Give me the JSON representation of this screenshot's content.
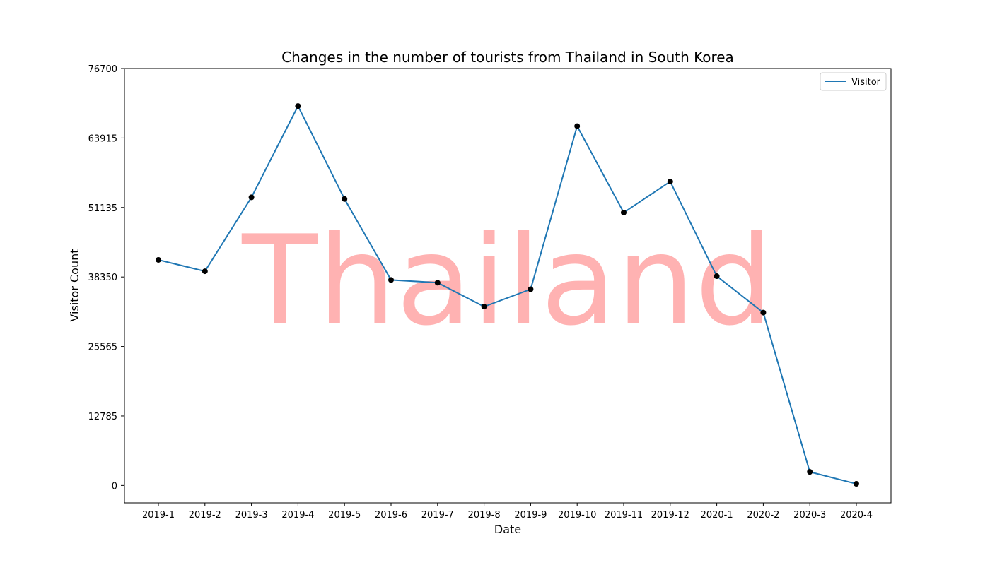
{
  "chart_data": {
    "type": "line",
    "title": "Changes in the number of tourists from Thailand in South Korea",
    "xlabel": "Date",
    "ylabel": "Visitor Count",
    "categories": [
      "2019-1",
      "2019-2",
      "2019-3",
      "2019-4",
      "2019-5",
      "2019-6",
      "2019-7",
      "2019-8",
      "2019-9",
      "2019-10",
      "2019-11",
      "2019-12",
      "2020-1",
      "2020-2",
      "2020-3",
      "2020-4"
    ],
    "series": [
      {
        "name": "Visitor",
        "color": "#1f77b4",
        "values": [
          41500,
          39400,
          53000,
          69800,
          52700,
          37800,
          37300,
          32900,
          36100,
          66100,
          50200,
          55900,
          38500,
          31800,
          2500,
          300
        ]
      }
    ],
    "ylim": [
      -3200,
      76700
    ],
    "yticks": [
      0,
      12785,
      25565,
      38350,
      51135,
      63915,
      76700
    ],
    "marker_color": "#000000",
    "grid": false,
    "legend_position": "top-right",
    "watermark": "Thailand",
    "watermark_color": "#ff0000"
  }
}
